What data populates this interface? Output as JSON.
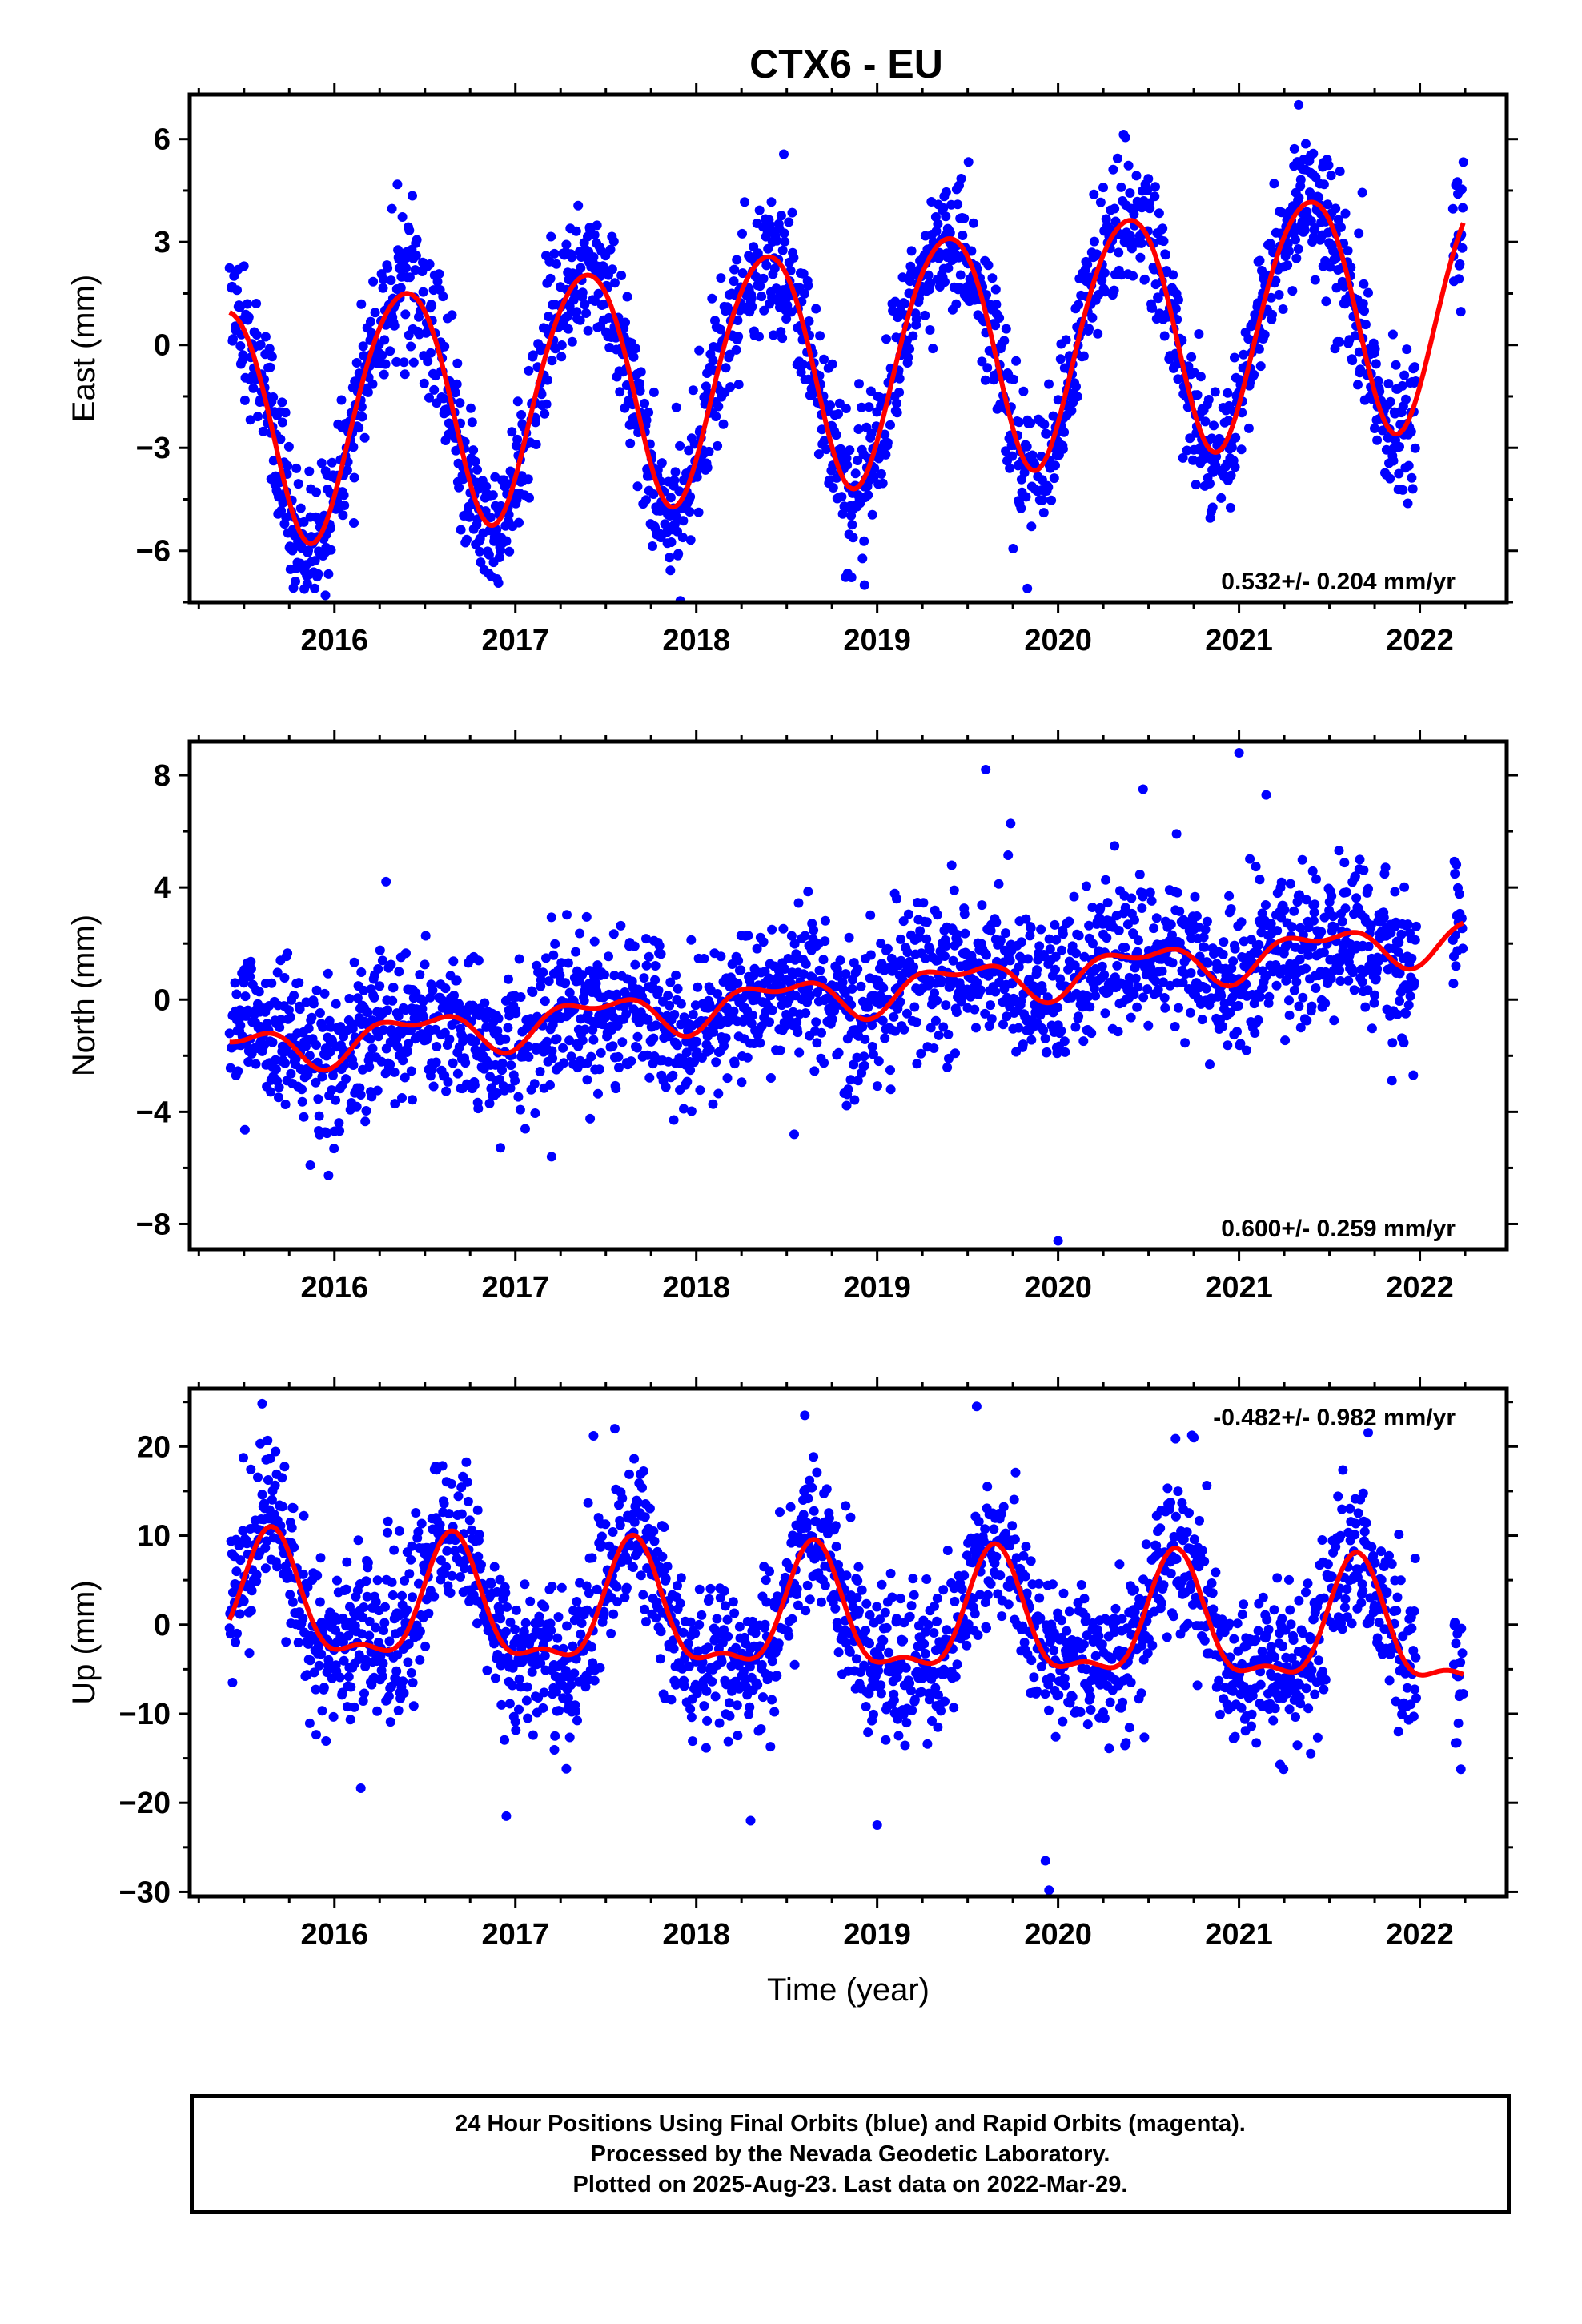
{
  "title": "CTX6 - EU",
  "chart_data": [
    {
      "type": "scatter",
      "panel": "east",
      "ylabel": "East (mm)",
      "xlabel": "",
      "xlim": [
        2015.2,
        2022.48
      ],
      "ylim": [
        -7.5,
        7.3
      ],
      "xticks": [
        2016,
        2017,
        2018,
        2019,
        2020,
        2021,
        2022
      ],
      "xtick_labels": [
        "2016",
        "2017",
        "2018",
        "2019",
        "2020",
        "2021",
        "2022"
      ],
      "yticks": [
        -6,
        -3,
        0,
        3,
        6
      ],
      "ytick_labels": [
        "−6",
        "−3",
        "0",
        "3",
        "6"
      ],
      "rate_label": "0.532+/- 0.204 mm/yr",
      "rate_position": "bottom-right",
      "grid": false,
      "data_range": [
        2015.42,
        2022.24
      ],
      "seasonal_model": {
        "offset": -0.45,
        "rate": 0.532,
        "ref_year": 2018.8,
        "annual_amp": 3.5,
        "annual_peak": 0.38,
        "semiannual_amp": 0.3,
        "semiannual_phase": 0.1
      },
      "scatter_sigma": 1.0,
      "outliers": [
        [
          2021.33,
          7.0
        ],
        [
          2019.83,
          -7.1
        ],
        [
          2018.93,
          -7.0
        ],
        [
          2015.95,
          -7.3
        ]
      ],
      "series": [
        {
          "name": "24 Hour Positions (Final Orbits)",
          "color": "#0000ff",
          "marker": "circle"
        },
        {
          "name": "Model fit",
          "color": "#ff0000",
          "marker": "line"
        }
      ]
    },
    {
      "type": "scatter",
      "panel": "north",
      "ylabel": "North (mm)",
      "xlabel": "",
      "xlim": [
        2015.2,
        2022.48
      ],
      "ylim": [
        -8.9,
        9.2
      ],
      "xticks": [
        2016,
        2017,
        2018,
        2019,
        2020,
        2021,
        2022
      ],
      "xtick_labels": [
        "2016",
        "2017",
        "2018",
        "2019",
        "2020",
        "2021",
        "2022"
      ],
      "yticks": [
        -8,
        -4,
        0,
        4,
        8
      ],
      "ytick_labels": [
        "−8",
        "−4",
        "0",
        "4",
        "8"
      ],
      "rate_label": "0.600+/- 0.259 mm/yr",
      "rate_position": "bottom-right",
      "grid": false,
      "data_range": [
        2015.42,
        2022.24
      ],
      "seasonal_model": {
        "offset": 0.2,
        "rate": 0.6,
        "ref_year": 2018.8,
        "annual_amp": 0.65,
        "annual_peak": 0.45,
        "semiannual_amp": 0.35,
        "semiannual_phase": 0.2
      },
      "scatter_sigma": 1.3,
      "outliers": [
        [
          2019.6,
          8.2
        ],
        [
          2021.0,
          8.8
        ],
        [
          2020.0,
          -8.6
        ],
        [
          2017.2,
          -5.6
        ],
        [
          2020.47,
          7.5
        ],
        [
          2021.15,
          7.3
        ]
      ],
      "series": [
        {
          "name": "24 Hour Positions (Final Orbits)",
          "color": "#0000ff",
          "marker": "circle"
        },
        {
          "name": "Model fit",
          "color": "#ff0000",
          "marker": "line"
        }
      ]
    },
    {
      "type": "scatter",
      "panel": "up",
      "ylabel": "Up (mm)",
      "xlabel": "Time (year)",
      "xlim": [
        2015.2,
        2022.48
      ],
      "ylim": [
        -30.5,
        26.5
      ],
      "xticks": [
        2016,
        2017,
        2018,
        2019,
        2020,
        2021,
        2022
      ],
      "xtick_labels": [
        "2016",
        "2017",
        "2018",
        "2019",
        "2020",
        "2021",
        "2022"
      ],
      "yticks": [
        -30,
        -20,
        -10,
        0,
        10,
        20
      ],
      "ytick_labels": [
        "−30",
        "−20",
        "−10",
        "0",
        "10",
        "20"
      ],
      "rate_label": "-0.482+/- 0.982 mm/yr",
      "rate_position": "top-right",
      "grid": false,
      "data_range": [
        2015.42,
        2022.24
      ],
      "seasonal_model": {
        "offset": 0.5,
        "rate": -0.482,
        "ref_year": 2018.8,
        "annual_amp": 6.5,
        "annual_peak": 0.65,
        "semiannual_amp": 2.5,
        "semiannual_phase": 0.15
      },
      "scatter_sigma": 4.2,
      "outliers": [
        [
          2015.6,
          24.8
        ],
        [
          2017.55,
          22.0
        ],
        [
          2018.6,
          23.5
        ],
        [
          2019.55,
          24.5
        ],
        [
          2020.75,
          21.0
        ],
        [
          2019.95,
          -29.8
        ],
        [
          2019.93,
          -26.5
        ],
        [
          2019.0,
          -22.5
        ],
        [
          2018.3,
          -22.0
        ],
        [
          2016.95,
          -21.5
        ]
      ],
      "series": [
        {
          "name": "24 Hour Positions (Final Orbits)",
          "color": "#0000ff",
          "marker": "circle"
        },
        {
          "name": "Model fit",
          "color": "#ff0000",
          "marker": "line"
        }
      ]
    }
  ],
  "footer": {
    "line1": "24 Hour Positions Using Final Orbits (blue) and Rapid Orbits (magenta).",
    "line2": "Processed by the Nevada Geodetic Laboratory.",
    "line3": "Plotted on 2025-Aug-23. Last data on 2022-Mar-29."
  }
}
